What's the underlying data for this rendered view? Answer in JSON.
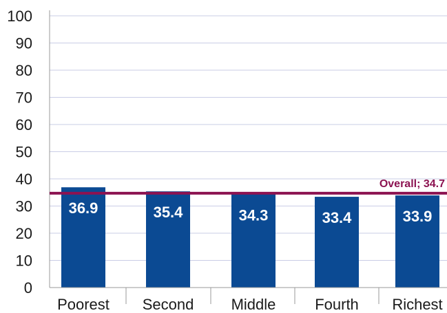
{
  "chart_data": {
    "type": "bar",
    "categories": [
      "Poorest",
      "Second",
      "Middle",
      "Fourth",
      "Richest"
    ],
    "values": [
      36.9,
      35.4,
      34.3,
      33.4,
      33.9
    ],
    "data_labels": [
      "36.9",
      "35.4",
      "34.3",
      "33.4",
      "33.9"
    ],
    "ylim": [
      0,
      100
    ],
    "yticks": [
      0,
      10,
      20,
      30,
      40,
      50,
      60,
      70,
      80,
      90,
      100
    ],
    "grid": true,
    "reference_line": {
      "value": 34.7,
      "label": "Overall; 34.7"
    },
    "colors": {
      "bar": "#0b4a93",
      "reference_line": "#8c1351",
      "grid": "#c9cce6",
      "axis": "#9a9a9a"
    }
  }
}
